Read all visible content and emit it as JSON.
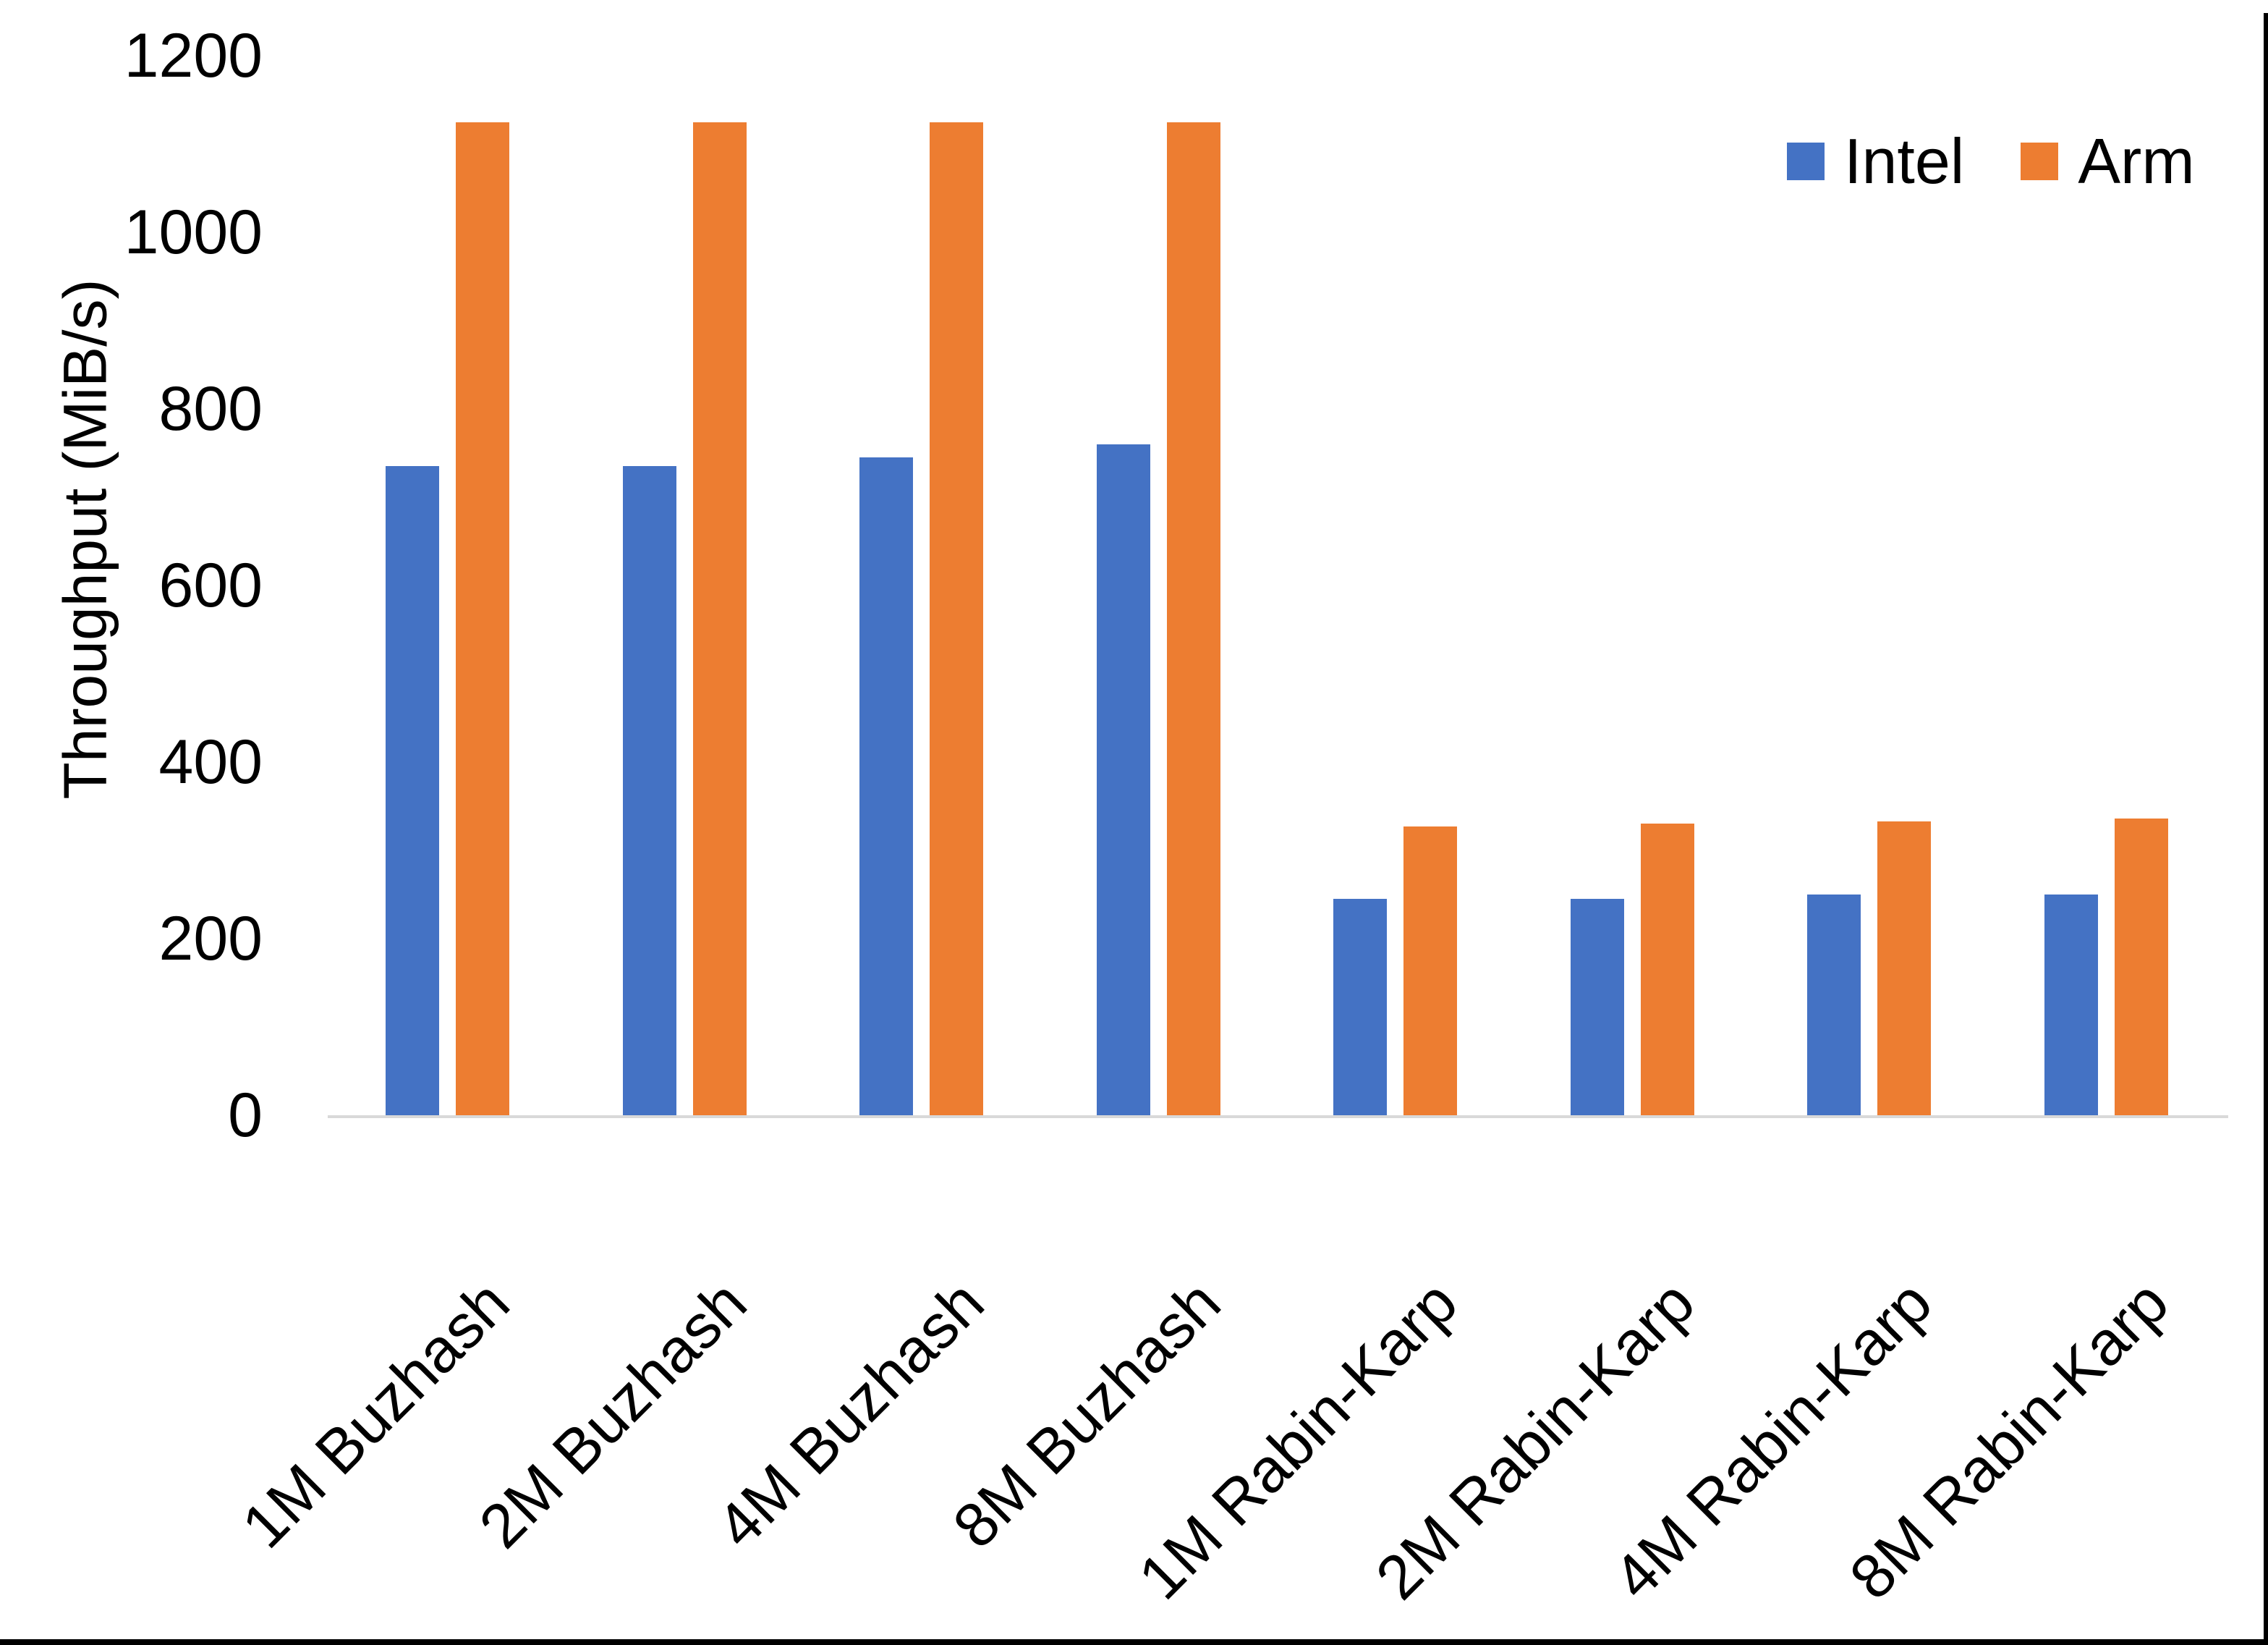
{
  "chart_data": {
    "type": "bar",
    "title": "",
    "ylabel": "Throughput (MiB/s)",
    "xlabel": "",
    "categories": [
      "1M Buzhash",
      "2M Buzhash",
      "4M Buzhash",
      "8M Buzhash",
      "1M Rabin-Karp",
      "2M Rabin-Karp",
      "4M Rabin-Karp",
      "8M Rabin-Karp"
    ],
    "series": [
      {
        "name": "Intel",
        "color": "#4472C4",
        "values": [
          735,
          735,
          745,
          760,
          245,
          245,
          250,
          250
        ]
      },
      {
        "name": "Arm",
        "color": "#ED7D31",
        "values": [
          1125,
          1125,
          1125,
          1125,
          327,
          330,
          333,
          336
        ]
      }
    ],
    "ylim": [
      0,
      1200
    ],
    "yticks": [
      0,
      200,
      400,
      600,
      800,
      1000,
      1200
    ],
    "grid": false,
    "legend_position": "top-right",
    "axis_line_color": "#D9D9D9",
    "text_color": "#000000",
    "background_color": "#FFFFFF",
    "bottom_border_color": "#000000"
  }
}
